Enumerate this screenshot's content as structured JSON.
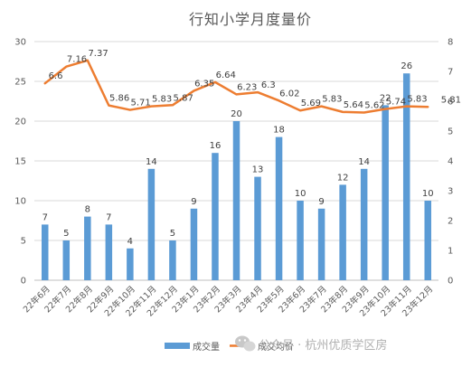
{
  "chart_data": {
    "type": "bar",
    "title": "行知小学月度量价",
    "categories": [
      "22年6月",
      "22年7月",
      "22年8月",
      "22年9月",
      "22年10月",
      "22年11月",
      "22年12月",
      "23年1月",
      "23年2月",
      "23年3月",
      "23年4月",
      "23年5月",
      "23年6月",
      "23年7月",
      "23年8月",
      "23年9月",
      "23年10月",
      "23年11月",
      "23年12月"
    ],
    "series": [
      {
        "name": "成交量",
        "type": "bar",
        "axis": "left",
        "color": "#5b9bd5",
        "values": [
          7,
          5,
          8,
          7,
          4,
          14,
          5,
          9,
          16,
          20,
          13,
          18,
          10,
          9,
          12,
          14,
          22,
          26,
          10
        ]
      },
      {
        "name": "成交均价",
        "type": "line",
        "axis": "right",
        "color": "#ed7d31",
        "values": [
          6.6,
          7.16,
          7.37,
          5.86,
          5.71,
          5.83,
          5.87,
          6.35,
          6.64,
          6.23,
          6.3,
          6.02,
          5.69,
          5.83,
          5.64,
          5.62,
          5.74,
          5.83,
          5.81
        ],
        "labels": [
          "6.6",
          "7.16",
          "7.37",
          "5.86",
          "5.71",
          "5.83",
          "5.87",
          "6.35",
          "6.64",
          "6.23",
          "6.3",
          "6.02",
          "5.69",
          "5.83",
          "5.64",
          "5.62",
          "5.74",
          "5.83",
          "5.81"
        ]
      }
    ],
    "y_left": {
      "min": 0,
      "max": 30,
      "ticks": [
        0,
        5,
        10,
        15,
        20,
        25,
        30
      ]
    },
    "y_right": {
      "min": 0,
      "max": 8,
      "ticks": [
        0,
        1,
        2,
        3,
        4,
        5,
        6,
        7,
        8
      ]
    },
    "grid": true,
    "legend_position": "bottom"
  },
  "watermark": {
    "text": "公众号 · 杭州优质学区房",
    "icon": "wechat-icon"
  }
}
